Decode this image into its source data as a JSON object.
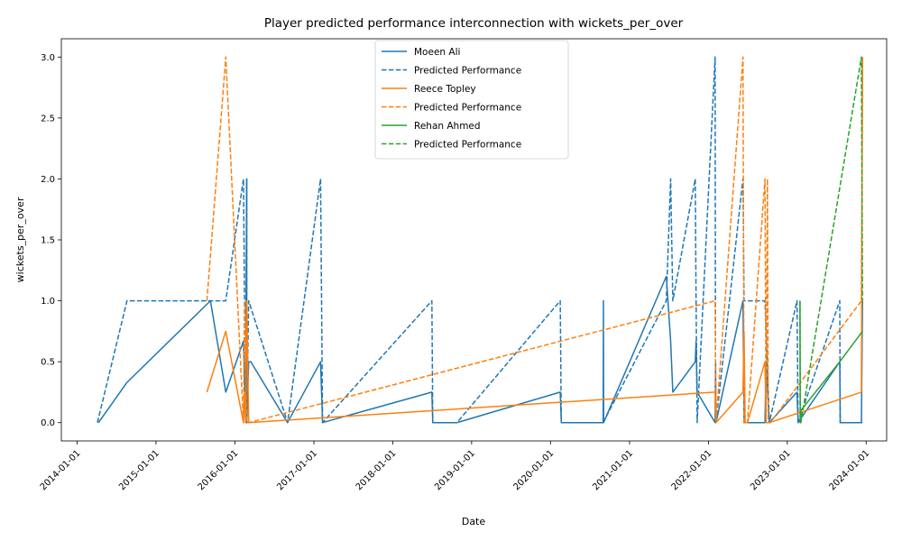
{
  "chart_data": {
    "type": "line",
    "title": "Player predicted performance interconnection with wickets_per_over",
    "xlabel": "Date",
    "ylabel": "wickets_per_over",
    "xlim": [
      "2013-10-20",
      "2024-04-05"
    ],
    "ylim": [
      -0.15,
      3.15
    ],
    "x_ticks": [
      "2014-01-01",
      "2015-01-01",
      "2016-01-01",
      "2017-01-01",
      "2018-01-01",
      "2019-01-01",
      "2020-01-01",
      "2021-01-01",
      "2022-01-01",
      "2023-01-01",
      "2024-01-01"
    ],
    "y_ticks": [
      "0.0",
      "0.5",
      "1.0",
      "1.5",
      "2.0",
      "2.5",
      "3.0"
    ],
    "legend_position": "upper-center",
    "series": [
      {
        "name": "Moeen Ali",
        "style": "solid",
        "color": "#1f77b4",
        "x": [
          "2014-04-10",
          "2014-08-20",
          "2015-09-10",
          "2015-11-20",
          "2016-02-10",
          "2016-02-20",
          "2016-02-25",
          "2016-02-25",
          "2016-03-05",
          "2016-03-15",
          "2016-09-01",
          "2017-02-01",
          "2017-02-10",
          "2018-07-01",
          "2018-07-05",
          "2018-10-25",
          "2020-02-15",
          "2020-02-20",
          "2020-09-01",
          "2020-09-02",
          "2020-09-03",
          "2021-06-20",
          "2021-07-10",
          "2021-07-20",
          "2021-11-01",
          "2021-11-05",
          "2021-11-10",
          "2022-02-01",
          "2022-02-03",
          "2022-02-05",
          "2022-06-10",
          "2022-06-15",
          "2022-09-20",
          "2022-09-25",
          "2022-10-10",
          "2023-02-15",
          "2023-02-20",
          "2023-09-01",
          "2023-09-03",
          "2023-11-10",
          "2023-12-10",
          "2023-12-15"
        ],
        "y": [
          0.0,
          0.33,
          1.0,
          0.25,
          0.67,
          0.0,
          2.0,
          0.0,
          0.5,
          0.5,
          0.0,
          0.5,
          0.0,
          0.25,
          0.0,
          0.0,
          0.25,
          0.0,
          0.0,
          1.0,
          0.0,
          1.2,
          0.67,
          0.25,
          0.5,
          0.67,
          0.25,
          0.0,
          0.5,
          0.0,
          1.0,
          0.0,
          0.0,
          0.5,
          0.0,
          0.25,
          0.0,
          0.5,
          0.0,
          0.0,
          0.0,
          1.0
        ]
      },
      {
        "name": "Predicted Performance",
        "style": "dashed",
        "color": "#1f77b4",
        "x": [
          "2014-04-05",
          "2014-08-20",
          "2015-09-10",
          "2015-11-20",
          "2016-02-10",
          "2016-02-20",
          "2016-02-25",
          "2016-02-25",
          "2016-03-05",
          "2016-09-01",
          "2017-02-01",
          "2017-02-10",
          "2018-07-01",
          "2018-07-05",
          "2018-10-25",
          "2020-02-15",
          "2020-02-20",
          "2020-09-01",
          "2021-06-20",
          "2021-07-10",
          "2021-07-20",
          "2021-11-01",
          "2021-11-05",
          "2021-11-10",
          "2022-02-01",
          "2022-02-03",
          "2022-02-05",
          "2022-06-10",
          "2022-06-15",
          "2022-09-20",
          "2022-10-10",
          "2023-02-15",
          "2023-02-20",
          "2023-09-01",
          "2023-09-03",
          "2023-12-15"
        ],
        "y": [
          0.0,
          1.0,
          1.0,
          1.0,
          2.0,
          0.0,
          2.0,
          0.0,
          1.0,
          0.0,
          2.0,
          0.0,
          1.0,
          0.0,
          0.0,
          1.0,
          0.0,
          0.0,
          1.0,
          2.0,
          1.0,
          2.0,
          1.0,
          0.0,
          3.0,
          0.0,
          0.0,
          2.0,
          1.0,
          1.0,
          0.0,
          1.0,
          0.0,
          1.0,
          0.0,
          0.0
        ]
      },
      {
        "name": "Reece Topley",
        "style": "solid",
        "color": "#ff7f0e",
        "x": [
          "2015-08-25",
          "2015-11-20",
          "2016-02-10",
          "2016-02-15",
          "2016-02-20",
          "2016-02-25",
          "2016-03-05",
          "2022-02-01",
          "2022-02-05",
          "2022-06-10",
          "2022-06-15",
          "2022-06-20",
          "2022-07-01",
          "2022-09-20",
          "2022-09-25",
          "2022-10-01",
          "2022-10-05",
          "2022-10-10",
          "2023-12-10",
          "2023-12-15"
        ],
        "y": [
          0.25,
          0.75,
          0.0,
          0.25,
          0.0,
          1.0,
          0.0,
          0.25,
          0.0,
          0.25,
          0.75,
          0.0,
          0.0,
          0.5,
          0.0,
          0.0,
          0.0,
          0.0,
          0.25,
          3.0
        ]
      },
      {
        "name": "Predicted Performance",
        "style": "dashed",
        "color": "#ff7f0e",
        "x": [
          "2015-08-25",
          "2015-11-20",
          "2016-02-10",
          "2016-02-15",
          "2016-02-25",
          "2016-03-05",
          "2022-02-01",
          "2022-02-05",
          "2022-06-10",
          "2022-06-15",
          "2022-06-20",
          "2022-07-01",
          "2022-09-20",
          "2022-09-25",
          "2022-10-01",
          "2022-10-05",
          "2022-10-15",
          "2023-12-10",
          "2023-12-15"
        ],
        "y": [
          1.0,
          3.0,
          0.0,
          1.0,
          0.0,
          0.0,
          1.0,
          0.0,
          3.0,
          0.0,
          0.0,
          0.0,
          2.0,
          0.0,
          2.0,
          0.0,
          0.0,
          1.0,
          3.0
        ]
      },
      {
        "name": "Rehan Ahmed",
        "style": "solid",
        "color": "#2ca02c",
        "x": [
          "2023-03-01",
          "2023-03-02",
          "2023-03-05",
          "2023-09-01",
          "2023-12-15"
        ],
        "y": [
          1.0,
          0.0,
          0.1,
          0.5,
          0.75
        ]
      },
      {
        "name": "Predicted Performance",
        "style": "dashed",
        "color": "#2ca02c",
        "x": [
          "2023-03-01",
          "2023-03-02",
          "2023-03-05",
          "2023-12-10",
          "2023-12-15"
        ],
        "y": [
          1.0,
          0.0,
          0.0,
          3.0,
          1.0
        ]
      }
    ]
  }
}
